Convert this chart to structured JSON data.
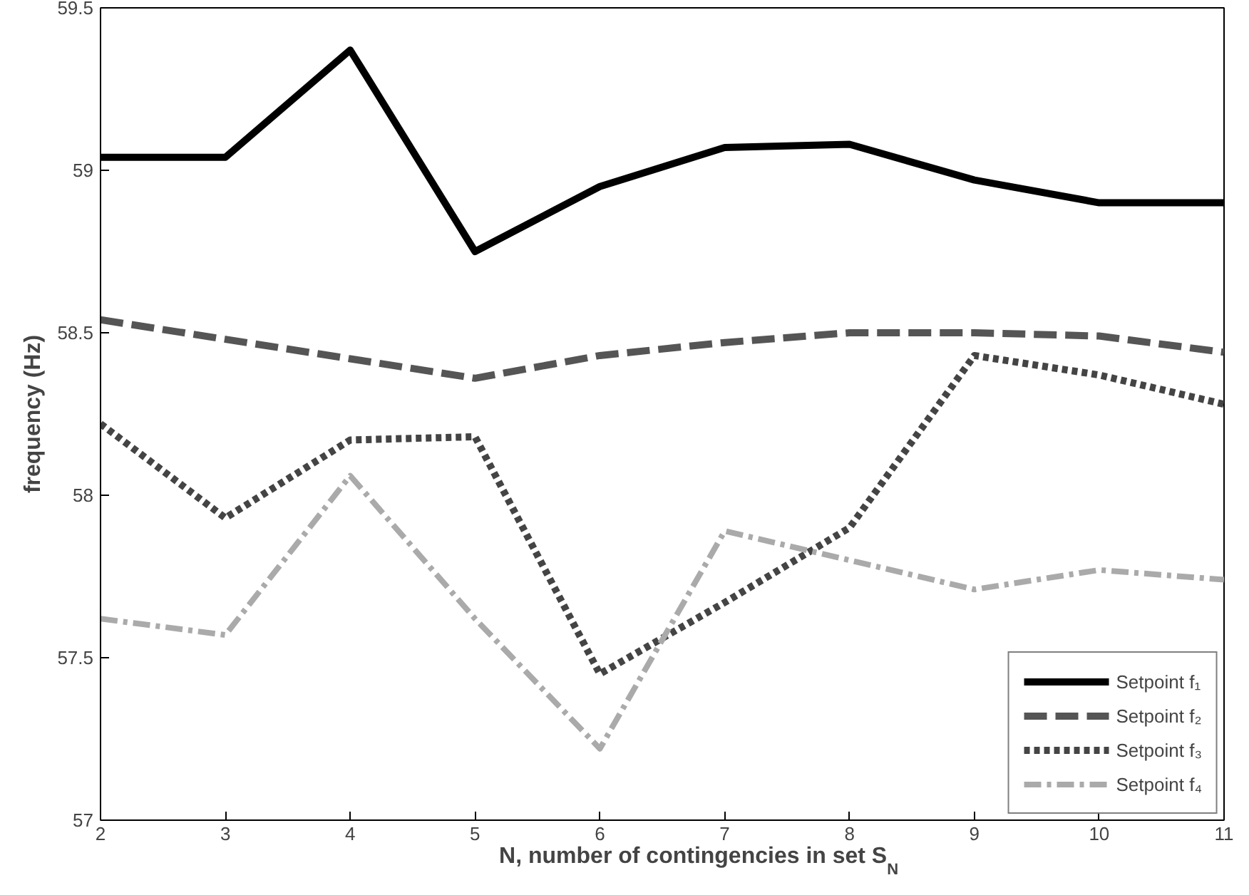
{
  "chart_data": {
    "type": "line",
    "xlabel": "N, number of contingencies in set S$_{N}$",
    "ylabel": "frequency (Hz)",
    "x": [
      2,
      3,
      4,
      5,
      6,
      7,
      8,
      9,
      10,
      11
    ],
    "series": [
      {
        "name": "Setpoint f₁",
        "color": "#000000",
        "line_style": "solid",
        "values": [
          59.04,
          59.04,
          59.37,
          58.75,
          58.95,
          59.07,
          59.08,
          58.97,
          58.9,
          58.9
        ]
      },
      {
        "name": "Setpoint f₂",
        "color": "#555555",
        "line_style": "dashed",
        "values": [
          58.54,
          58.48,
          58.42,
          58.36,
          58.43,
          58.47,
          58.5,
          58.5,
          58.49,
          58.44
        ]
      },
      {
        "name": "Setpoint f₃",
        "color": "#444444",
        "line_style": "dotted",
        "values": [
          58.22,
          57.93,
          58.17,
          58.18,
          57.45,
          57.67,
          57.9,
          58.43,
          58.37,
          58.28
        ]
      },
      {
        "name": "Setpoint f₄",
        "color": "#aaaaaa",
        "line_style": "dashdot",
        "values": [
          57.62,
          57.57,
          58.06,
          57.62,
          57.22,
          57.89,
          57.8,
          57.71,
          57.77,
          57.74
        ]
      }
    ],
    "xlim": [
      2,
      11
    ],
    "xticks": [
      2,
      3,
      4,
      5,
      6,
      7,
      8,
      9,
      10,
      11
    ],
    "ylim": [
      57,
      59.5
    ],
    "yticks": [
      57,
      57.5,
      58,
      58.5,
      59,
      59.5
    ],
    "grid": false,
    "legend": "bottom right",
    "marker": "none"
  }
}
